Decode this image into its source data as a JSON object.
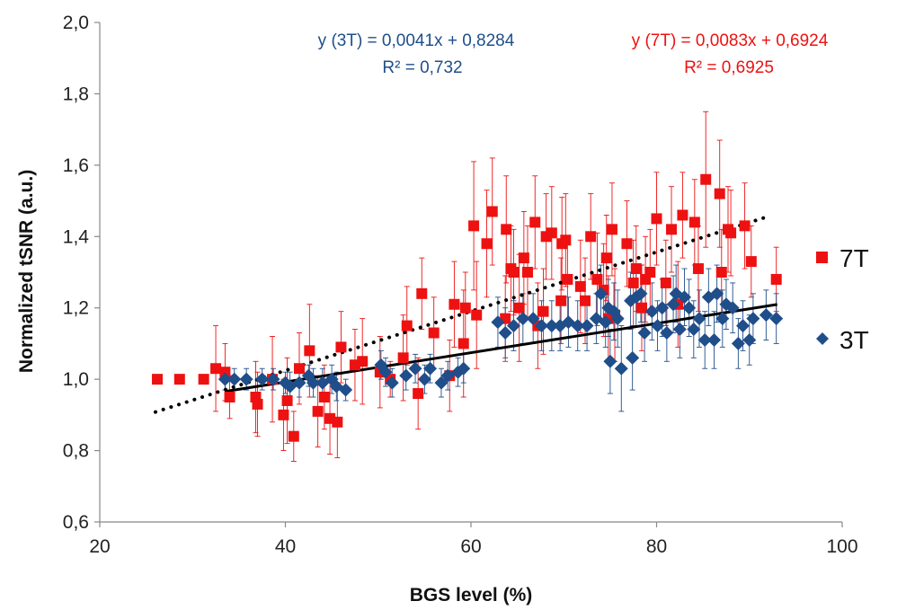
{
  "chart_data": {
    "type": "scatter",
    "xlabel": "BGS level (%)",
    "ylabel": "Normalized tSNR (a.u.)",
    "xlim": [
      20,
      100
    ],
    "ylim": [
      0.6,
      2.0
    ],
    "x_ticks": [
      "20",
      "40",
      "60",
      "80",
      "100"
    ],
    "y_ticks": [
      "0,6",
      "0,8",
      "1,0",
      "1,2",
      "1,4",
      "1,6",
      "1,8",
      "2,0"
    ],
    "legend": [
      "7T",
      "3T"
    ],
    "colors": {
      "series_7T": "#ee1111",
      "series_3T": "#1f4e8a",
      "trend": "#000000"
    },
    "series": [
      {
        "name": "7T",
        "marker": "square",
        "color": "#ee1111",
        "points": [
          [
            26.2,
            1.0,
            0
          ],
          [
            28.6,
            1.0,
            0
          ],
          [
            31.2,
            1.0,
            0
          ],
          [
            32.5,
            1.03,
            0.12
          ],
          [
            33.5,
            1.02,
            0.08
          ],
          [
            34.0,
            0.95,
            0.06
          ],
          [
            36.8,
            0.95,
            0.1
          ],
          [
            37.0,
            0.93,
            0.09
          ],
          [
            38.6,
            1.0,
            0.12
          ],
          [
            39.8,
            0.9,
            0.1
          ],
          [
            40.2,
            0.94,
            0.12
          ],
          [
            40.9,
            0.84,
            0.07
          ],
          [
            41.5,
            1.03,
            0.1
          ],
          [
            42.6,
            1.08,
            0.13
          ],
          [
            43.5,
            0.91,
            0.1
          ],
          [
            44.2,
            0.95,
            0.09
          ],
          [
            44.8,
            0.89,
            0.1
          ],
          [
            45.6,
            0.88,
            0.1
          ],
          [
            46.0,
            1.09,
            0.1
          ],
          [
            47.5,
            1.04,
            0.1
          ],
          [
            48.3,
            1.05,
            0.12
          ],
          [
            50.2,
            1.02,
            0.1
          ],
          [
            51.3,
            1.0,
            0.05
          ],
          [
            52.7,
            1.06,
            0.12
          ],
          [
            53.1,
            1.15,
            0.11
          ],
          [
            54.3,
            0.96,
            0.1
          ],
          [
            54.7,
            1.24,
            0.1
          ],
          [
            56.0,
            1.13,
            0.1
          ],
          [
            57.7,
            1.01,
            0.1
          ],
          [
            58.2,
            1.21,
            0.12
          ],
          [
            59.2,
            1.1,
            0.15
          ],
          [
            59.4,
            1.2,
            0.1
          ],
          [
            60.3,
            1.43,
            0.18
          ],
          [
            60.6,
            1.18,
            0.15
          ],
          [
            61.7,
            1.38,
            0.15
          ],
          [
            62.3,
            1.47,
            0.15
          ],
          [
            63.7,
            1.17,
            0.12
          ],
          [
            63.8,
            1.42,
            0.15
          ],
          [
            64.3,
            1.31,
            0.12
          ],
          [
            64.6,
            1.3,
            0.12
          ],
          [
            65.2,
            1.2,
            0.15
          ],
          [
            65.7,
            1.34,
            0.13
          ],
          [
            66.1,
            1.3,
            0.13
          ],
          [
            66.9,
            1.44,
            0.13
          ],
          [
            67.2,
            1.15,
            0.12
          ],
          [
            67.8,
            1.19,
            0.12
          ],
          [
            68.1,
            1.4,
            0.12
          ],
          [
            68.7,
            1.41,
            0.13
          ],
          [
            69.7,
            1.22,
            0.12
          ],
          [
            69.8,
            1.38,
            0.13
          ],
          [
            70.2,
            1.39,
            0.13
          ],
          [
            70.4,
            1.28,
            0.12
          ],
          [
            71.8,
            1.26,
            0.13
          ],
          [
            72.3,
            1.22,
            0.12
          ],
          [
            72.9,
            1.4,
            0.12
          ],
          [
            73.6,
            1.28,
            0.13
          ],
          [
            74.3,
            1.25,
            0.13
          ],
          [
            74.6,
            1.34,
            0.12
          ],
          [
            74.8,
            1.17,
            0.12
          ],
          [
            75.2,
            1.42,
            0.13
          ],
          [
            75.5,
            1.18,
            0.13
          ],
          [
            76.8,
            1.38,
            0.12
          ],
          [
            77.5,
            1.27,
            0.12
          ],
          [
            77.8,
            1.31,
            0.12
          ],
          [
            78.4,
            1.2,
            0.12
          ],
          [
            78.8,
            1.28,
            0.12
          ],
          [
            79.3,
            1.3,
            0.12
          ],
          [
            80.0,
            1.45,
            0.13
          ],
          [
            81.0,
            1.27,
            0.12
          ],
          [
            81.6,
            1.42,
            0.12
          ],
          [
            82.3,
            1.21,
            0.12
          ],
          [
            82.8,
            1.46,
            0.12
          ],
          [
            84.1,
            1.44,
            0.12
          ],
          [
            84.5,
            1.31,
            0.12
          ],
          [
            85.3,
            1.56,
            0.19
          ],
          [
            86.8,
            1.52,
            0.15
          ],
          [
            87.0,
            1.3,
            0.12
          ],
          [
            87.7,
            1.42,
            0.12
          ],
          [
            88.0,
            1.41,
            0.12
          ],
          [
            89.5,
            1.43,
            0.12
          ],
          [
            90.2,
            1.33,
            0.1
          ],
          [
            92.9,
            1.28,
            0.09
          ]
        ],
        "trendline": {
          "equation": "y (7T) = 0,0083x + 0,6924",
          "r2": "R² = 0,6925",
          "slope": 0.0083,
          "intercept": 0.6924,
          "x_range": [
            26,
            91.5
          ],
          "style": "dotted"
        }
      },
      {
        "name": "3T",
        "marker": "diamond",
        "color": "#1f4e8a",
        "points": [
          [
            33.5,
            1.0,
            0.03
          ],
          [
            34.5,
            1.0,
            0.03
          ],
          [
            35.8,
            1.0,
            0.03
          ],
          [
            37.5,
            1.0,
            0.03
          ],
          [
            38.7,
            1.0,
            0.03
          ],
          [
            40.0,
            0.99,
            0.03
          ],
          [
            40.5,
            0.98,
            0.04
          ],
          [
            41.5,
            0.99,
            0.04
          ],
          [
            42.5,
            1.01,
            0.03
          ],
          [
            43.0,
            0.99,
            0.04
          ],
          [
            44.0,
            0.99,
            0.04
          ],
          [
            45.0,
            1.0,
            0.04
          ],
          [
            45.5,
            0.98,
            0.04
          ],
          [
            46.5,
            0.97,
            0.03
          ],
          [
            50.3,
            1.04,
            0.04
          ],
          [
            50.8,
            1.02,
            0.04
          ],
          [
            51.5,
            0.99,
            0.04
          ],
          [
            53.0,
            1.01,
            0.04
          ],
          [
            54.0,
            1.03,
            0.04
          ],
          [
            55.0,
            1.0,
            0.04
          ],
          [
            55.6,
            1.03,
            0.04
          ],
          [
            56.8,
            0.99,
            0.04
          ],
          [
            57.5,
            1.01,
            0.04
          ],
          [
            58.6,
            1.02,
            0.04
          ],
          [
            59.2,
            1.03,
            0.04
          ],
          [
            62.9,
            1.16,
            0.07
          ],
          [
            63.7,
            1.13,
            0.07
          ],
          [
            64.6,
            1.15,
            0.07
          ],
          [
            65.6,
            1.17,
            0.07
          ],
          [
            66.7,
            1.17,
            0.07
          ],
          [
            67.6,
            1.15,
            0.07
          ],
          [
            68.7,
            1.15,
            0.07
          ],
          [
            69.6,
            1.15,
            0.07
          ],
          [
            70.5,
            1.16,
            0.07
          ],
          [
            71.5,
            1.15,
            0.07
          ],
          [
            72.5,
            1.15,
            0.07
          ],
          [
            73.5,
            1.17,
            0.07
          ],
          [
            74.0,
            1.24,
            0.08
          ],
          [
            74.5,
            1.16,
            0.07
          ],
          [
            74.8,
            1.2,
            0.08
          ],
          [
            75.0,
            1.05,
            0.09
          ],
          [
            75.4,
            1.19,
            0.08
          ],
          [
            75.8,
            1.17,
            0.08
          ],
          [
            76.2,
            1.03,
            0.12
          ],
          [
            77.2,
            1.22,
            0.08
          ],
          [
            77.4,
            1.06,
            0.09
          ],
          [
            77.8,
            1.23,
            0.08
          ],
          [
            78.3,
            1.24,
            0.08
          ],
          [
            78.7,
            1.13,
            0.08
          ],
          [
            79.5,
            1.19,
            0.08
          ],
          [
            80.1,
            1.15,
            0.07
          ],
          [
            80.6,
            1.2,
            0.08
          ],
          [
            81.1,
            1.13,
            0.08
          ],
          [
            81.8,
            1.21,
            0.08
          ],
          [
            82.1,
            1.24,
            0.08
          ],
          [
            82.5,
            1.14,
            0.08
          ],
          [
            83.0,
            1.23,
            0.08
          ],
          [
            83.5,
            1.2,
            0.08
          ],
          [
            84.0,
            1.14,
            0.08
          ],
          [
            84.6,
            1.17,
            0.08
          ],
          [
            85.2,
            1.11,
            0.08
          ],
          [
            85.6,
            1.23,
            0.08
          ],
          [
            86.2,
            1.11,
            0.08
          ],
          [
            86.5,
            1.24,
            0.08
          ],
          [
            87.1,
            1.17,
            0.08
          ],
          [
            87.5,
            1.21,
            0.07
          ],
          [
            88.2,
            1.2,
            0.07
          ],
          [
            88.8,
            1.1,
            0.07
          ],
          [
            89.3,
            1.15,
            0.07
          ],
          [
            90.0,
            1.11,
            0.07
          ],
          [
            90.4,
            1.17,
            0.07
          ],
          [
            91.8,
            1.18,
            0.07
          ],
          [
            92.9,
            1.17,
            0.07
          ]
        ],
        "trendline": {
          "equation": "y (3T) = 0,0041x + 0,8284",
          "r2": "R² = 0,732",
          "slope": 0.0041,
          "intercept": 0.8284,
          "x_range": [
            33.5,
            93
          ],
          "style": "solid"
        }
      }
    ]
  }
}
